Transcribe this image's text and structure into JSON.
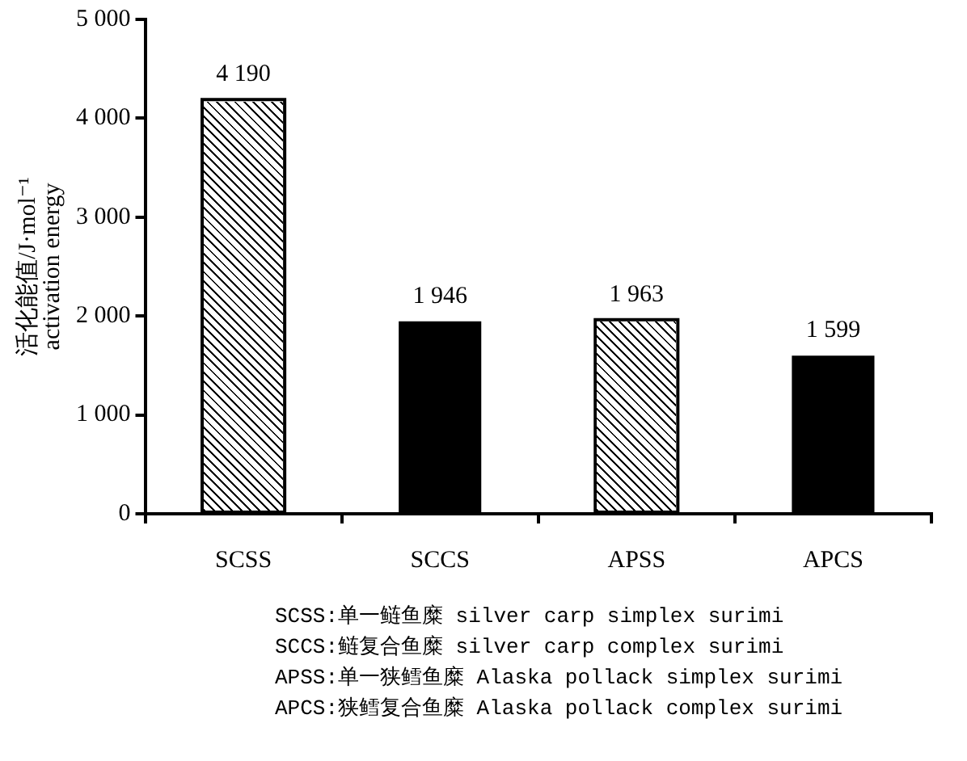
{
  "chart_data": {
    "type": "bar",
    "ylabel": "活化能值/J·mol⁻¹\nactivation energy",
    "categories": [
      "SCSS",
      "SCCS",
      "APSS",
      "APCS"
    ],
    "values": [
      4190,
      1946,
      1963,
      1599
    ],
    "value_labels": [
      "4 190",
      "1 946",
      "1 963",
      "1 599"
    ],
    "colors": [
      "#ffffff",
      "#000000",
      "#ffffff",
      "#000000"
    ],
    "ylim": [
      0,
      5000
    ],
    "yticks": [
      0,
      {
        "value": 1000,
        "label": "1 000"
      },
      {
        "value": 2000,
        "label": "2 000"
      },
      {
        "value": 3000,
        "label": "3 000"
      },
      {
        "value": 4000,
        "label": "4 000"
      },
      {
        "value": 5000,
        "label": "5 000"
      }
    ],
    "grid": false,
    "legend": false,
    "annotations": [
      "SCSS:单一鲢鱼糜 silver carp simplex surimi",
      "SCCS:鲢复合鱼糜 silver carp complex surimi",
      "APSS:单一狭鳕鱼糜 Alaska pollack simplex surimi",
      "APCS:狭鳕复合鱼糜 Alaska pollack complex surimi"
    ]
  }
}
